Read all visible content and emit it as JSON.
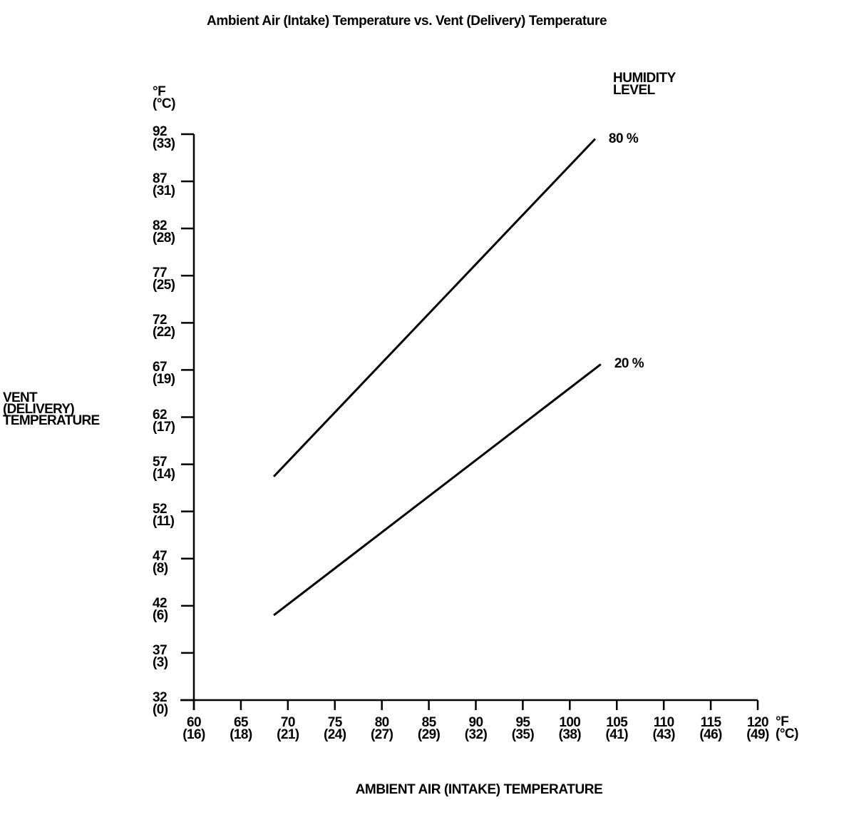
{
  "chart_data": {
    "type": "line",
    "title": "Ambient Air (Intake) Temperature vs. Vent (Delivery) Temperature",
    "xlabel": "AMBIENT AIR (INTAKE) TEMPERATURE",
    "ylabel": "VENT\n(DELIVERY)\nTEMPERATURE",
    "x_unit": "°F\n(°C)",
    "y_unit": "°F\n(°C)",
    "legend_title": "HUMIDITY\nLEVEL",
    "grid": false,
    "legend_position": "top-right",
    "xlim": [
      60,
      120
    ],
    "ylim": [
      32,
      92
    ],
    "x_ticks": [
      {
        "f": 60,
        "c": 16
      },
      {
        "f": 65,
        "c": 18
      },
      {
        "f": 70,
        "c": 21
      },
      {
        "f": 75,
        "c": 24
      },
      {
        "f": 80,
        "c": 27
      },
      {
        "f": 85,
        "c": 29
      },
      {
        "f": 90,
        "c": 32
      },
      {
        "f": 95,
        "c": 35
      },
      {
        "f": 100,
        "c": 38
      },
      {
        "f": 105,
        "c": 41
      },
      {
        "f": 110,
        "c": 43
      },
      {
        "f": 115,
        "c": 46
      },
      {
        "f": 120,
        "c": 49
      }
    ],
    "y_ticks": [
      {
        "f": 32,
        "c": 0
      },
      {
        "f": 37,
        "c": 3
      },
      {
        "f": 42,
        "c": 6
      },
      {
        "f": 47,
        "c": 8
      },
      {
        "f": 52,
        "c": 11
      },
      {
        "f": 57,
        "c": 14
      },
      {
        "f": 62,
        "c": 17
      },
      {
        "f": 67,
        "c": 19
      },
      {
        "f": 72,
        "c": 22
      },
      {
        "f": 77,
        "c": 25
      },
      {
        "f": 82,
        "c": 28
      },
      {
        "f": 87,
        "c": 31
      },
      {
        "f": 92,
        "c": 33
      }
    ],
    "series": [
      {
        "name": "80 %",
        "humidity_percent": 80,
        "points": [
          [
            68.5,
            55.7
          ],
          [
            102.7,
            91.5
          ]
        ]
      },
      {
        "name": "20 %",
        "humidity_percent": 20,
        "points": [
          [
            68.5,
            41.0
          ],
          [
            103.3,
            67.6
          ]
        ]
      }
    ],
    "line_color": "#000000",
    "background_color": "#ffffff"
  }
}
